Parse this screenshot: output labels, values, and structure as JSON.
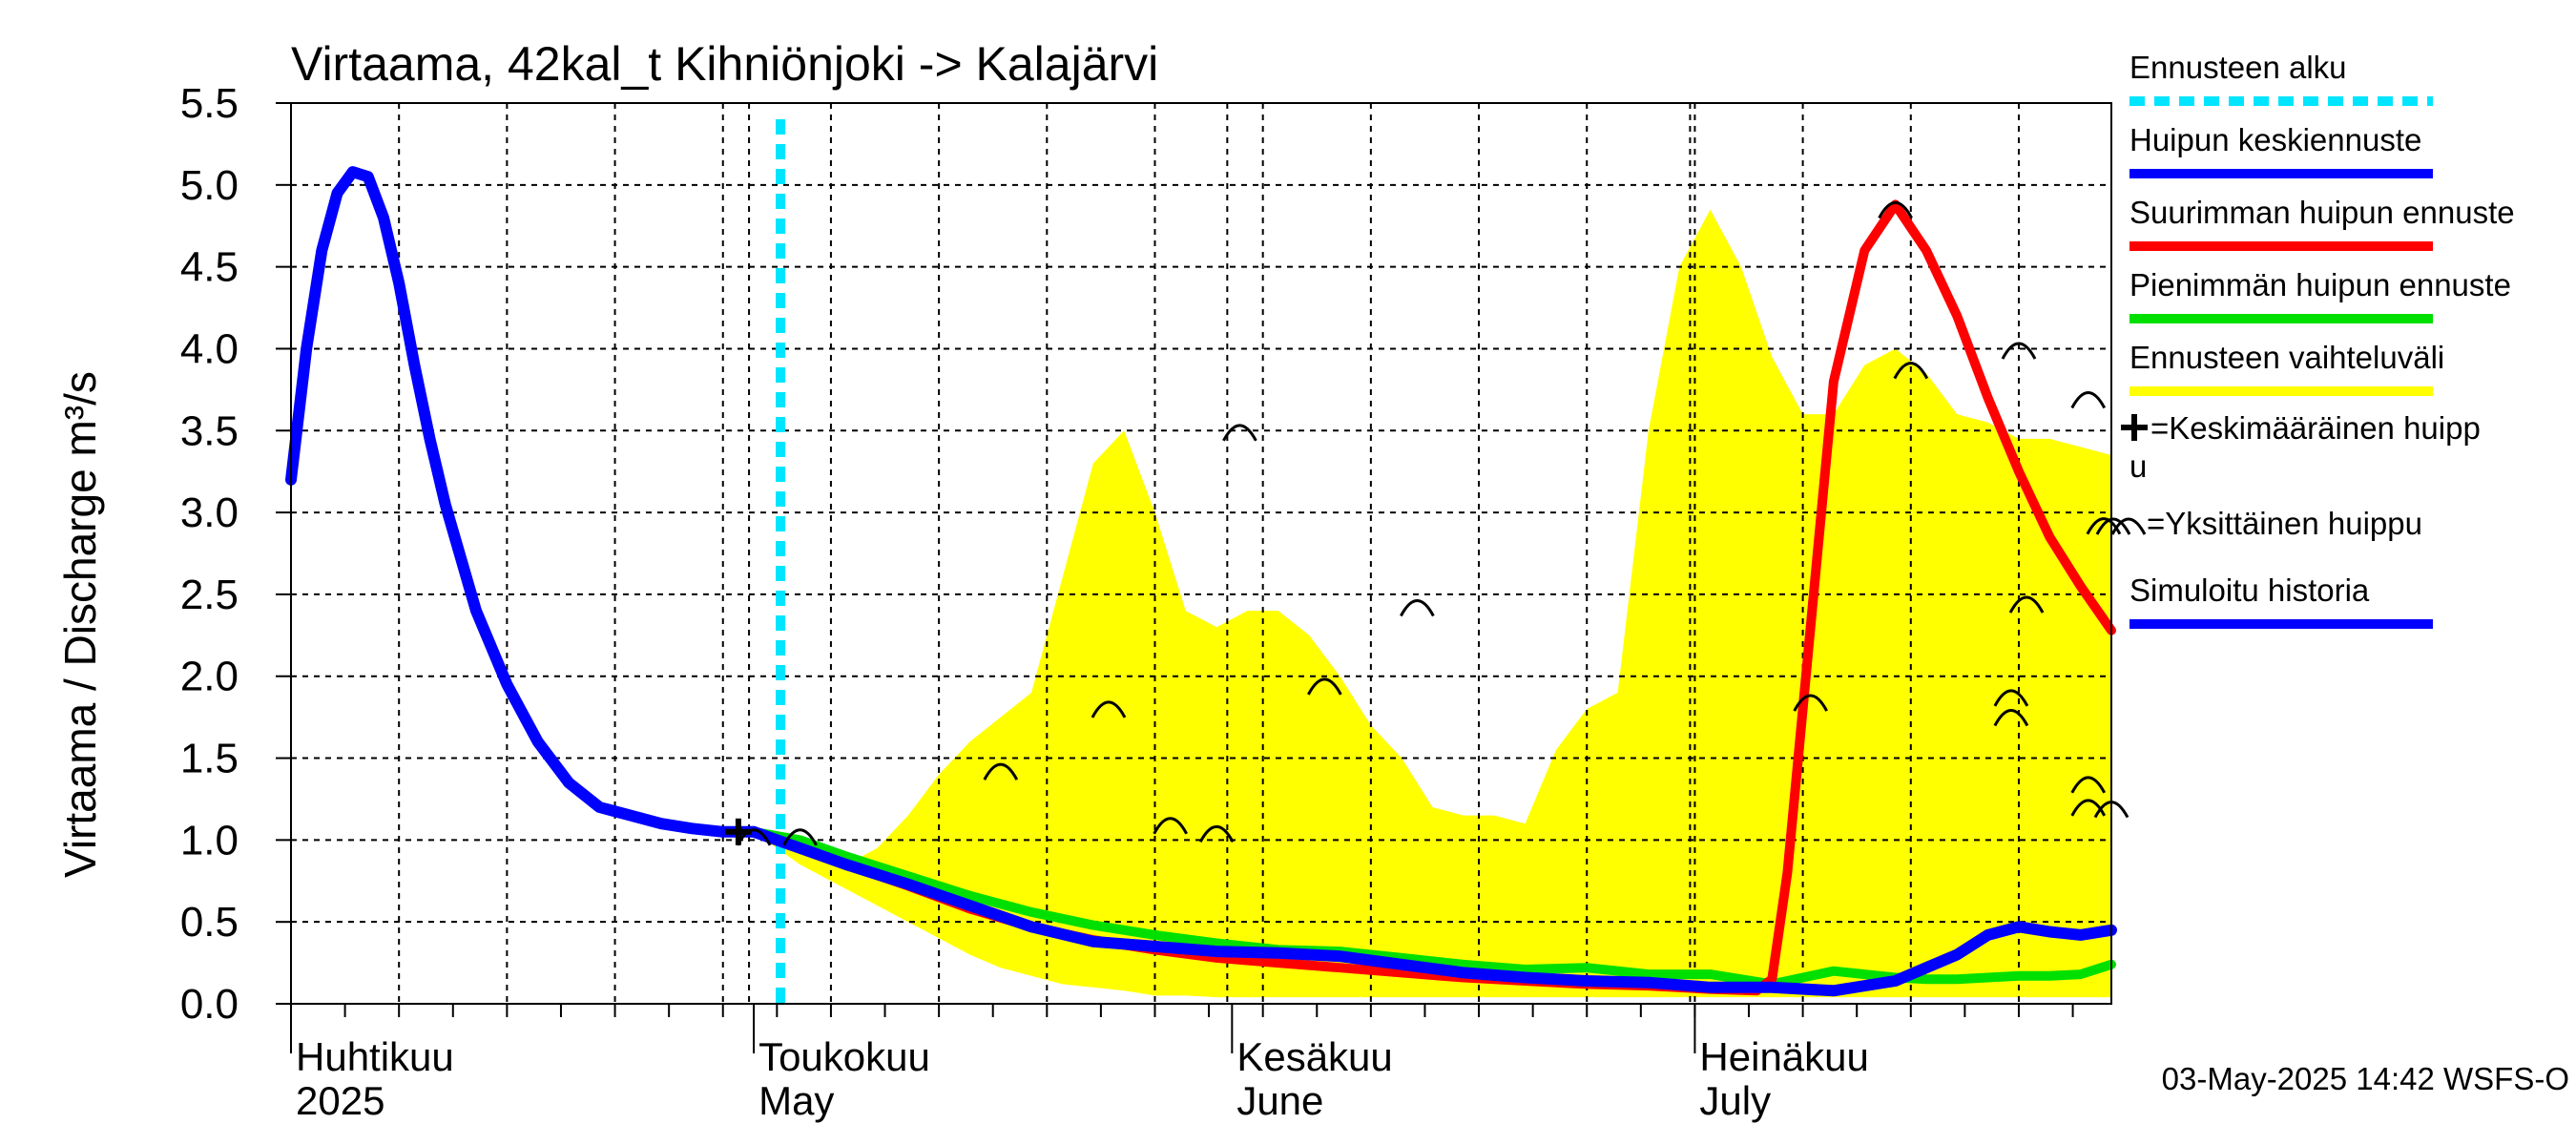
{
  "chart_data": {
    "type": "line",
    "title": "Virtaama, 42kal_t Kihniönjoki -> Kalajärvi",
    "ylabel": "Virtaama / Discharge    m³/s",
    "ylim": [
      0,
      5.5
    ],
    "yticks": [
      "0.0",
      "0.5",
      "1.0",
      "1.5",
      "2.0",
      "2.5",
      "3.0",
      "3.5",
      "4.0",
      "4.5",
      "5.0",
      "5.5"
    ],
    "x_start_day": 0,
    "x_end_day": 118,
    "forecast_start_day": 30,
    "months": [
      {
        "day": 0,
        "fi": "Huhtikuu",
        "en": "2025"
      },
      {
        "day": 30,
        "fi": "Toukokuu",
        "en": "May"
      },
      {
        "day": 61,
        "fi": "Kesäkuu",
        "en": "June"
      },
      {
        "day": 91,
        "fi": "Heinäkuu",
        "en": "July"
      }
    ],
    "colors": {
      "forecast_start": "#00e5ff",
      "mean_peak": "#0000ff",
      "max_peak": "#ff0000",
      "min_peak": "#00e000",
      "range": "#ffff00",
      "history": "#0000ff"
    },
    "series": [
      {
        "name": "Simuloitu historia",
        "key": "history",
        "x": [
          0,
          1,
          2,
          3,
          4,
          5,
          6,
          7,
          8,
          9,
          10,
          12,
          14,
          16,
          18,
          20,
          22,
          24,
          26,
          28,
          30
        ],
        "y": [
          3.2,
          4.0,
          4.6,
          4.95,
          5.08,
          5.05,
          4.8,
          4.4,
          3.9,
          3.45,
          3.05,
          2.4,
          1.95,
          1.6,
          1.35,
          1.2,
          1.15,
          1.1,
          1.07,
          1.05,
          1.05
        ]
      },
      {
        "name": "Huipun keskiennuste",
        "key": "mean_peak",
        "x": [
          30,
          33,
          36,
          40,
          44,
          48,
          52,
          56,
          60,
          64,
          68,
          72,
          76,
          80,
          84,
          88,
          92,
          96,
          100,
          104,
          106,
          108,
          110,
          112,
          114,
          116,
          118
        ],
        "y": [
          1.05,
          0.95,
          0.85,
          0.73,
          0.6,
          0.47,
          0.38,
          0.35,
          0.32,
          0.31,
          0.29,
          0.24,
          0.19,
          0.16,
          0.14,
          0.13,
          0.1,
          0.1,
          0.08,
          0.14,
          0.22,
          0.3,
          0.42,
          0.47,
          0.44,
          0.42,
          0.45
        ]
      },
      {
        "name": "Suurimman huipun ennuste",
        "key": "max_peak",
        "x": [
          30,
          33,
          36,
          40,
          44,
          48,
          52,
          56,
          60,
          64,
          68,
          72,
          76,
          80,
          84,
          88,
          92,
          95,
          96,
          97,
          98,
          100,
          102,
          104,
          106,
          108,
          110,
          112,
          114,
          116,
          118
        ],
        "y": [
          1.05,
          0.95,
          0.85,
          0.72,
          0.58,
          0.47,
          0.39,
          0.33,
          0.28,
          0.25,
          0.22,
          0.19,
          0.16,
          0.14,
          0.12,
          0.11,
          0.09,
          0.08,
          0.15,
          0.8,
          1.8,
          3.8,
          4.6,
          4.88,
          4.6,
          4.2,
          3.7,
          3.25,
          2.85,
          2.55,
          2.28
        ]
      },
      {
        "name": "Pienimmän huipun ennuste",
        "key": "min_peak",
        "x": [
          30,
          33,
          36,
          40,
          44,
          48,
          52,
          56,
          60,
          64,
          68,
          72,
          76,
          80,
          84,
          88,
          92,
          96,
          100,
          104,
          106,
          108,
          110,
          112,
          114,
          116,
          118
        ],
        "y": [
          1.05,
          1.0,
          0.9,
          0.78,
          0.66,
          0.56,
          0.48,
          0.42,
          0.37,
          0.33,
          0.32,
          0.28,
          0.24,
          0.21,
          0.22,
          0.18,
          0.18,
          0.12,
          0.2,
          0.16,
          0.15,
          0.15,
          0.16,
          0.17,
          0.17,
          0.18,
          0.24
        ]
      },
      {
        "name": "Ennusteen vaihteluväli",
        "key": "range",
        "x": [
          30,
          33,
          36,
          38,
          40,
          42,
          44,
          46,
          48,
          50,
          52,
          54,
          56,
          58,
          60,
          62,
          64,
          66,
          68,
          70,
          72,
          74,
          76,
          78,
          80,
          82,
          84,
          86,
          88,
          90,
          92,
          94,
          96,
          98,
          100,
          102,
          104,
          106,
          108,
          110,
          112,
          114,
          116,
          118
        ],
        "upper": [
          1.05,
          1.0,
          0.85,
          0.95,
          1.15,
          1.4,
          1.6,
          1.75,
          1.9,
          2.6,
          3.3,
          3.5,
          3.0,
          2.4,
          2.3,
          2.4,
          2.4,
          2.25,
          2.0,
          1.7,
          1.5,
          1.2,
          1.15,
          1.15,
          1.1,
          1.55,
          1.8,
          1.9,
          3.5,
          4.5,
          4.85,
          4.5,
          3.95,
          3.6,
          3.6,
          3.9,
          4.0,
          3.85,
          3.6,
          3.55,
          3.45,
          3.45,
          3.4,
          3.35
        ],
        "lower": [
          1.05,
          0.85,
          0.7,
          0.6,
          0.5,
          0.4,
          0.3,
          0.22,
          0.17,
          0.12,
          0.1,
          0.08,
          0.05,
          0.05,
          0.04,
          0.04,
          0.04,
          0.04,
          0.04,
          0.04,
          0.04,
          0.04,
          0.04,
          0.04,
          0.04,
          0.04,
          0.04,
          0.04,
          0.04,
          0.04,
          0.04,
          0.04,
          0.04,
          0.04,
          0.04,
          0.04,
          0.04,
          0.04,
          0.04,
          0.04,
          0.04,
          0.04,
          0.04,
          0.04
        ]
      }
    ],
    "mean_peak_marker": {
      "x": 29,
      "y": 1.05
    },
    "single_peaks": [
      {
        "x": 30,
        "y": 1.05
      },
      {
        "x": 33,
        "y": 1.05
      },
      {
        "x": 46,
        "y": 1.45
      },
      {
        "x": 53,
        "y": 1.83
      },
      {
        "x": 57,
        "y": 1.12
      },
      {
        "x": 60,
        "y": 1.07
      },
      {
        "x": 61.5,
        "y": 3.52
      },
      {
        "x": 67,
        "y": 1.97
      },
      {
        "x": 73,
        "y": 2.45
      },
      {
        "x": 98.5,
        "y": 1.87
      },
      {
        "x": 104,
        "y": 4.88
      },
      {
        "x": 105,
        "y": 3.9
      },
      {
        "x": 111.5,
        "y": 1.9
      },
      {
        "x": 111.5,
        "y": 1.78
      },
      {
        "x": 112,
        "y": 4.02
      },
      {
        "x": 112.5,
        "y": 2.47
      },
      {
        "x": 116.5,
        "y": 3.72
      },
      {
        "x": 117.5,
        "y": 2.95
      },
      {
        "x": 116.5,
        "y": 1.37
      },
      {
        "x": 116.5,
        "y": 1.23
      },
      {
        "x": 118,
        "y": 1.22
      }
    ],
    "legend": {
      "placement": "right",
      "items": [
        {
          "label": "Ennusteen alku",
          "style": "dash",
          "color": "#00e5ff"
        },
        {
          "label": "Huipun keskiennuste",
          "style": "line",
          "color": "#0000ff"
        },
        {
          "label": "Suurimman huipun ennuste",
          "style": "line",
          "color": "#ff0000"
        },
        {
          "label": "Pienimmän huipun ennuste",
          "style": "line",
          "color": "#00e000"
        },
        {
          "label": "Ennusteen vaihteluväli",
          "style": "line",
          "color": "#ffff00"
        },
        {
          "label": "=Keskimääräinen huipp",
          "label2": "u",
          "style": "plus"
        },
        {
          "label": "=Yksittäinen huippu",
          "style": "arc"
        },
        {
          "label": "Simuloitu historia",
          "style": "line",
          "color": "#0000ff"
        }
      ]
    },
    "footer": "03-May-2025 14:42 WSFS-O"
  }
}
